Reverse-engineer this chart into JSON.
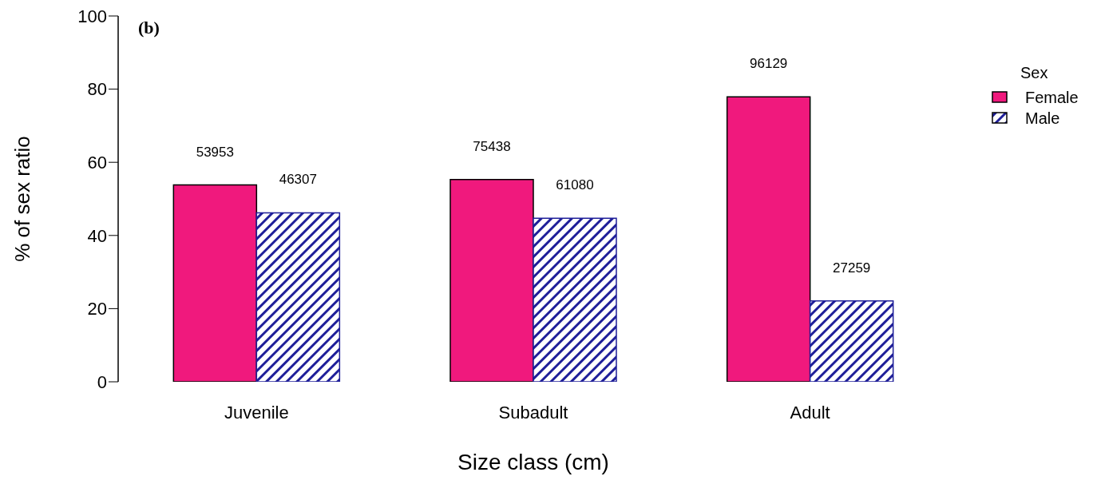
{
  "chart_data": {
    "type": "bar",
    "xlabel": "Size class (cm)",
    "ylabel": "% of sex ratio",
    "legend_title": "Sex",
    "annotations": [
      "(b)",
      {
        "text": "53953",
        "x": "Juvenile",
        "y": 53.8
      },
      {
        "text": "46307",
        "x": "Juvenile",
        "y": 46.2
      },
      {
        "text": "75438",
        "x": "Subadult",
        "y": 55.3
      },
      {
        "text": "61080",
        "x": "Subadult",
        "y": 44.7
      },
      {
        "text": "96129",
        "x": "Adult",
        "y": 77.9
      },
      {
        "text": "27259",
        "x": "Adult",
        "y": 22.1
      }
    ],
    "categories": [
      "Juvenile",
      "Subadult",
      "Adult"
    ],
    "series": [
      {
        "name": "Female",
        "color": "#f0197d",
        "values": [
          53.8,
          55.3,
          77.9
        ]
      },
      {
        "name": "Male",
        "color": "#1f1f99",
        "values": [
          46.2,
          44.7,
          22.1
        ]
      }
    ],
    "ylim": [
      0,
      100
    ],
    "yticks": [
      0,
      20,
      40,
      60,
      80,
      100
    ],
    "grid": false,
    "legend": "top right"
  }
}
